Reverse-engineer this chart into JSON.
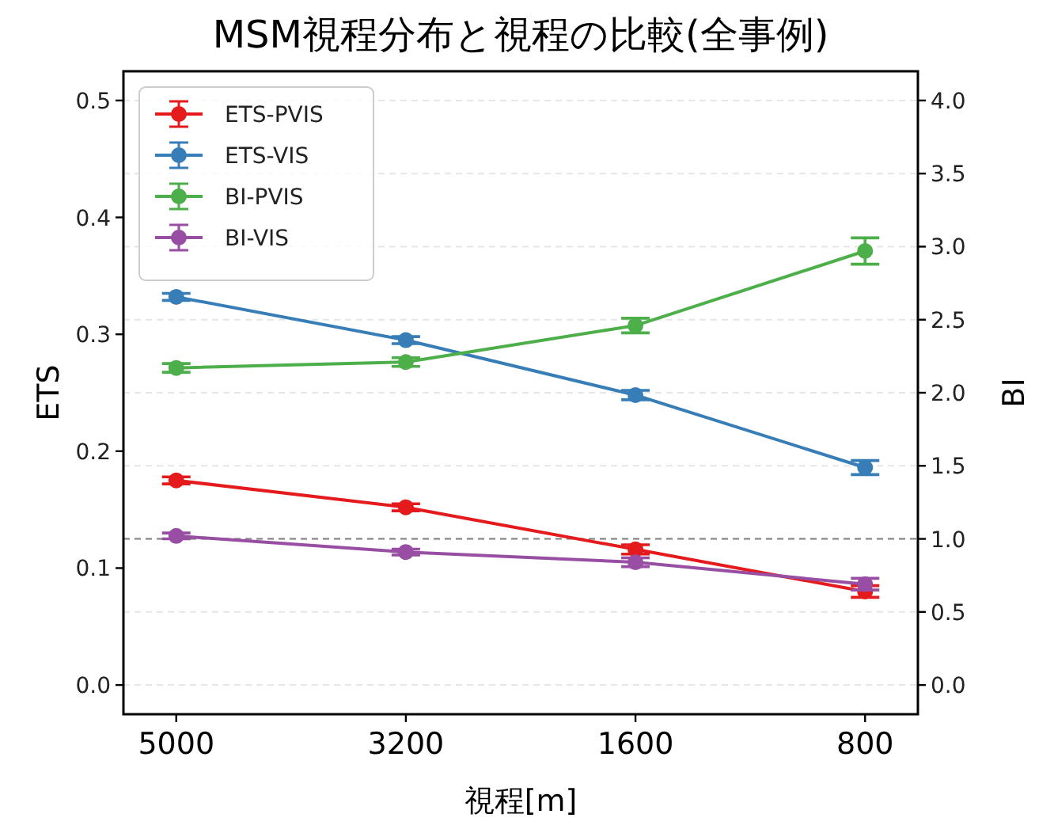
{
  "chart_data": {
    "type": "line",
    "title": "MSM視程分布と視程の比較(全事例)",
    "xlabel": "視程[m]",
    "ylabel": "ETS",
    "y2label": "BI",
    "categories": [
      "5000",
      "3200",
      "1600",
      "800"
    ],
    "series": [
      {
        "name": "ETS-PVIS",
        "color": "#e41a1c",
        "values": [
          0.175,
          0.152,
          0.116,
          0.08
        ],
        "errors": [
          0.003,
          0.003,
          0.004,
          0.005
        ]
      },
      {
        "name": "ETS-VIS",
        "color": "#377eb8",
        "values": [
          0.332,
          0.295,
          0.248,
          0.186
        ],
        "errors": [
          0.003,
          0.003,
          0.004,
          0.006
        ]
      },
      {
        "name": "BI-PVIS",
        "color": "#4daf4a",
        "axis": "y2",
        "values": [
          2.17,
          2.21,
          2.46,
          2.97
        ],
        "errors": [
          0.03,
          0.03,
          0.05,
          0.09
        ]
      },
      {
        "name": "BI-VIS",
        "color": "#984ea3",
        "axis": "y2",
        "values": [
          1.02,
          0.91,
          0.84,
          0.69
        ],
        "errors": [
          0.02,
          0.02,
          0.03,
          0.04
        ]
      }
    ],
    "ylim": [
      -0.025,
      0.525
    ],
    "yticks": [
      {
        "value": 0,
        "label": "0.0"
      },
      0.1,
      0.2,
      0.3,
      0.4,
      0.5
    ],
    "y2lim": [
      -0.2,
      4.2
    ],
    "y2ticks": [
      {
        "value": 0,
        "label": "0.0"
      },
      0.5,
      {
        "value": 1,
        "label": "1.0"
      },
      1.5,
      {
        "value": 2,
        "label": "2.0"
      },
      2.5,
      {
        "value": 3,
        "label": "3.0"
      },
      3.5,
      {
        "value": 4,
        "label": "4.0"
      }
    ],
    "ref_lines": [
      {
        "axis": "y2",
        "value": 1.0,
        "color": "#808080",
        "line_style": "dashed"
      }
    ],
    "grid": "y",
    "legend": "top left",
    "marker": "circle",
    "line_style": "solid"
  }
}
